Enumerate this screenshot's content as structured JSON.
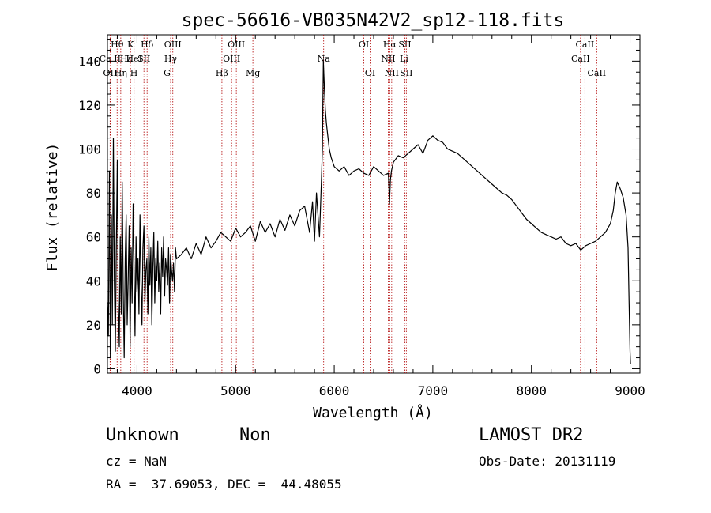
{
  "chart_data": {
    "type": "line",
    "title": "spec-56616-VB035N42V2_sp12-118.fits",
    "xlabel": "Wavelength (Å)",
    "ylabel": "Flux (relative)",
    "xlim": [
      3700,
      9100
    ],
    "ylim": [
      -2,
      152
    ],
    "xticks": [
      4000,
      5000,
      6000,
      7000,
      8000,
      9000
    ],
    "yticks": [
      0,
      20,
      40,
      60,
      80,
      100,
      120,
      140
    ],
    "grid": false,
    "line_color": "#000000",
    "marker_color": "#b00000",
    "spectral_lines": [
      {
        "name": "Hθ",
        "wavelength": 3798,
        "row": 0
      },
      {
        "name": "Ca II",
        "wavelength": 3727,
        "row": 1
      },
      {
        "name": "OII",
        "wavelength": 3727,
        "row": 2
      },
      {
        "name": "Hε",
        "wavelength": 3889,
        "row": 1
      },
      {
        "name": "K",
        "wavelength": 3934,
        "row": 0
      },
      {
        "name": "HeI",
        "wavelength": 3970,
        "row": 1
      },
      {
        "name": "Hη",
        "wavelength": 3835,
        "row": 2
      },
      {
        "name": "H",
        "wavelength": 3969,
        "row": 2
      },
      {
        "name": "Hδ",
        "wavelength": 4102,
        "row": 0
      },
      {
        "name": "SII",
        "wavelength": 4070,
        "row": 1
      },
      {
        "name": "OIII",
        "wavelength": 4363,
        "row": 0
      },
      {
        "name": "Hγ",
        "wavelength": 4341,
        "row": 1
      },
      {
        "name": "G",
        "wavelength": 4305,
        "row": 2
      },
      {
        "name": "OIII",
        "wavelength": 5007,
        "row": 0
      },
      {
        "name": "OIII",
        "wavelength": 4959,
        "row": 1
      },
      {
        "name": "Hβ",
        "wavelength": 4861,
        "row": 2
      },
      {
        "name": "Mg",
        "wavelength": 5175,
        "row": 2
      },
      {
        "name": "Na",
        "wavelength": 5893,
        "row": 1
      },
      {
        "name": "OI",
        "wavelength": 6300,
        "row": 0
      },
      {
        "name": "OI",
        "wavelength": 6364,
        "row": 2
      },
      {
        "name": "Hα",
        "wavelength": 6563,
        "row": 0
      },
      {
        "name": "NII",
        "wavelength": 6548,
        "row": 1
      },
      {
        "name": "NII",
        "wavelength": 6583,
        "row": 2
      },
      {
        "name": "SII",
        "wavelength": 6716,
        "row": 0
      },
      {
        "name": "Li",
        "wavelength": 6708,
        "row": 1
      },
      {
        "name": "SII",
        "wavelength": 6731,
        "row": 2
      },
      {
        "name": "CaII",
        "wavelength": 8542,
        "row": 0
      },
      {
        "name": "CaII",
        "wavelength": 8498,
        "row": 1
      },
      {
        "name": "CaII",
        "wavelength": 8662,
        "row": 2
      }
    ],
    "series": [
      {
        "x": [
          3700,
          3710,
          3720,
          3730,
          3740,
          3750,
          3760,
          3770,
          3780,
          3790,
          3800,
          3810,
          3820,
          3830,
          3840,
          3850,
          3860,
          3870,
          3880,
          3890,
          3900,
          3910,
          3920,
          3930,
          3940,
          3950,
          3960,
          3970,
          3980,
          3990,
          4000,
          4010,
          4020,
          4030,
          4040,
          4050,
          4060,
          4070,
          4080,
          4090,
          4100,
          4110,
          4120,
          4130,
          4140,
          4150,
          4160,
          4170,
          4180,
          4190,
          4200,
          4210,
          4220,
          4230,
          4240,
          4250,
          4260,
          4270,
          4280,
          4290,
          4300,
          4310,
          4320,
          4330,
          4340,
          4350,
          4360,
          4370,
          4380,
          4390,
          4400,
          4450,
          4500,
          4550,
          4600,
          4650,
          4700,
          4750,
          4800,
          4850,
          4900,
          4950,
          5000,
          5050,
          5100,
          5150,
          5200,
          5250,
          5300,
          5350,
          5400,
          5450,
          5500,
          5550,
          5600,
          5650,
          5700,
          5750,
          5780,
          5800,
          5820,
          5850,
          5870,
          5880,
          5890,
          5900,
          5910,
          5920,
          5930,
          5950,
          5970,
          6000,
          6050,
          6100,
          6150,
          6200,
          6250,
          6300,
          6350,
          6400,
          6450,
          6500,
          6550,
          6560,
          6570,
          6580,
          6600,
          6650,
          6700,
          6750,
          6800,
          6850,
          6900,
          6950,
          7000,
          7050,
          7100,
          7150,
          7200,
          7250,
          7300,
          7350,
          7400,
          7450,
          7500,
          7550,
          7600,
          7650,
          7700,
          7750,
          7800,
          7850,
          7900,
          7950,
          8000,
          8050,
          8100,
          8150,
          8200,
          8250,
          8300,
          8350,
          8400,
          8450,
          8500,
          8550,
          8600,
          8650,
          8700,
          8750,
          8800,
          8830,
          8850,
          8870,
          8900,
          8930,
          8960,
          8980,
          8990,
          9000,
          9005
        ],
        "y": [
          30,
          15,
          90,
          5,
          70,
          20,
          105,
          40,
          8,
          55,
          95,
          30,
          10,
          60,
          25,
          85,
          35,
          5,
          50,
          70,
          20,
          40,
          65,
          10,
          55,
          30,
          75,
          45,
          15,
          60,
          35,
          50,
          25,
          70,
          40,
          20,
          55,
          65,
          30,
          45,
          50,
          25,
          60,
          38,
          55,
          20,
          45,
          62,
          30,
          50,
          40,
          58,
          35,
          48,
          25,
          55,
          42,
          60,
          33,
          50,
          45,
          38,
          55,
          30,
          52,
          45,
          40,
          48,
          35,
          55,
          50,
          52,
          55,
          50,
          57,
          52,
          60,
          55,
          58,
          62,
          60,
          58,
          64,
          60,
          62,
          65,
          58,
          67,
          62,
          66,
          60,
          68,
          63,
          70,
          65,
          72,
          74,
          62,
          76,
          58,
          80,
          60,
          85,
          100,
          140,
          128,
          118,
          112,
          108,
          100,
          96,
          92,
          90,
          92,
          88,
          90,
          91,
          89,
          88,
          92,
          90,
          88,
          89,
          75,
          86,
          90,
          94,
          97,
          96,
          98,
          100,
          102,
          98,
          104,
          106,
          104,
          103,
          100,
          99,
          98,
          96,
          94,
          92,
          90,
          88,
          86,
          84,
          82,
          80,
          79,
          77,
          74,
          71,
          68,
          66,
          64,
          62,
          61,
          60,
          59,
          60,
          57,
          56,
          57,
          54,
          56,
          57,
          58,
          60,
          62,
          66,
          72,
          80,
          85,
          82,
          78,
          70,
          55,
          30,
          8,
          2
        ]
      }
    ]
  },
  "info": {
    "object_class": "Unknown",
    "object_subclass": "Non",
    "survey": "LAMOST DR2",
    "redshift": "cz = NaN",
    "obs_date": "Obs-Date: 20131119",
    "coords": "RA =  37.69053, DEC =  44.48055"
  }
}
